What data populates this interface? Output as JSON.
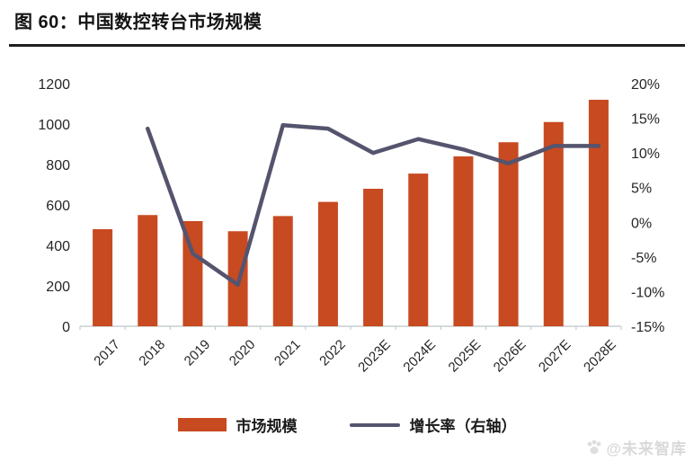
{
  "header": {
    "title": "图 60：中国数控转台市场规模"
  },
  "legend": {
    "items": [
      {
        "label": "市场规模",
        "type": "bar",
        "color": "#C84A21"
      },
      {
        "label": "增长率（右轴）",
        "type": "line",
        "color": "#55546E"
      }
    ]
  },
  "watermark": {
    "icon": "paw-icon",
    "text": "@未来智库"
  },
  "colors": {
    "bar": "#C84A21",
    "line": "#55546E",
    "axis_text": "#262626",
    "axis_line": "#c8cdd1",
    "title_text": "#141414",
    "watermark": "#d9d9d9"
  },
  "chart_data": {
    "type": "bar",
    "title": "中国数控转台市场规模",
    "categories": [
      "2017",
      "2018",
      "2019",
      "2020",
      "2021",
      "2022",
      "2023E",
      "2024E",
      "2025E",
      "2026E",
      "2027E",
      "2028E"
    ],
    "series": [
      {
        "name": "市场规模",
        "type": "bar",
        "axis": "left",
        "color": "#C84A21",
        "values": [
          480,
          550,
          520,
          470,
          545,
          615,
          680,
          755,
          840,
          910,
          1010,
          1120
        ]
      },
      {
        "name": "增长率（右轴）",
        "type": "line",
        "axis": "right",
        "color": "#55546E",
        "values": [
          null,
          13.5,
          -4.5,
          -9,
          14,
          13.5,
          10,
          12,
          10.5,
          8.5,
          11,
          11
        ]
      }
    ],
    "left_axis": {
      "min": 0,
      "max": 1200,
      "step": 200,
      "ticks": [
        "0",
        "200",
        "400",
        "600",
        "800",
        "1000",
        "1200"
      ]
    },
    "right_axis": {
      "min": -15,
      "max": 20,
      "step": 5,
      "ticks": [
        "-15%",
        "-10%",
        "-5%",
        "0%",
        "5%",
        "10%",
        "15%",
        "20%"
      ]
    },
    "grid": false,
    "legend_position": "bottom"
  }
}
